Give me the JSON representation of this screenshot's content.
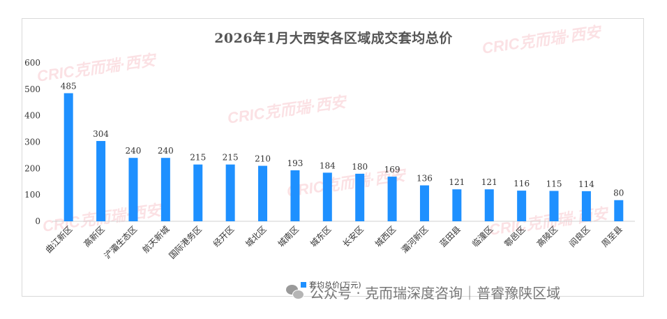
{
  "watermark": {
    "text": "CRIC克而瑞·西安"
  },
  "legend": {
    "label": "套均总价(万元)"
  },
  "footer": {
    "text": "公众号 · 克而瑞深度咨询｜普睿豫陕区域"
  },
  "chart_data": {
    "type": "bar",
    "title": "2026年1月大西安各区域成交套均总价",
    "xlabel": "",
    "ylabel": "",
    "ylim": [
      0,
      600
    ],
    "yticks": [
      0,
      100,
      200,
      300,
      400,
      500,
      600
    ],
    "grid": false,
    "legend_position": "bottom",
    "bar_color": "#1e90ff",
    "categories": [
      "曲江新区",
      "高新区",
      "浐灞生态区",
      "航天新城",
      "国际港务区",
      "经开区",
      "城北区",
      "城南区",
      "城东区",
      "长安区",
      "城西区",
      "灞河新区",
      "蓝田县",
      "临潼区",
      "鄠邑区",
      "高陵区",
      "阎良区",
      "周至县"
    ],
    "series": [
      {
        "name": "套均总价(万元)",
        "values": [
          485,
          304,
          240,
          240,
          215,
          215,
          210,
          193,
          184,
          180,
          169,
          136,
          121,
          121,
          116,
          115,
          114,
          80
        ]
      }
    ]
  }
}
